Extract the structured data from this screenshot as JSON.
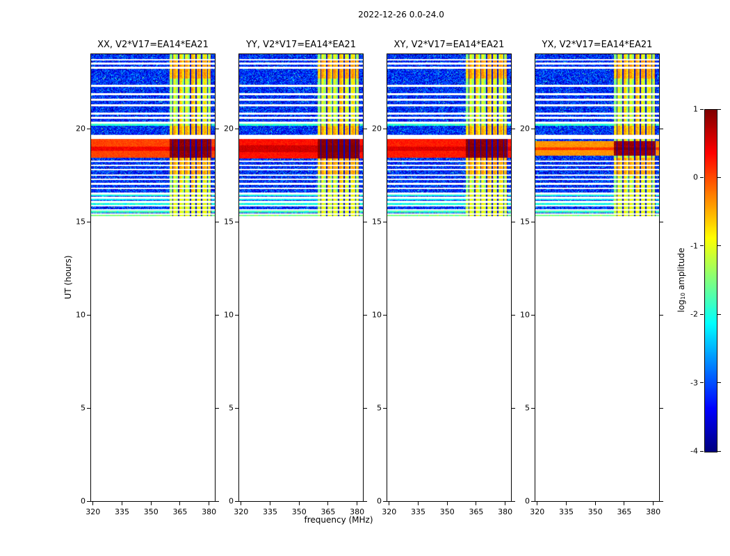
{
  "figure_title": "2022-12-26 0.0-24.0",
  "axes": {
    "x_label": "frequency (MHz)",
    "y_label": "UT (hours)",
    "x_ticks": [
      320,
      335,
      350,
      365,
      380
    ],
    "y_ticks": [
      0,
      5,
      10,
      15,
      20
    ],
    "x_range": [
      319,
      383
    ],
    "y_range": [
      0,
      24
    ]
  },
  "colorbar": {
    "label_prefix": "log",
    "label_sub": "10",
    "label_suffix": " amplitude",
    "ticks": [
      1,
      0,
      -1,
      -2,
      -3,
      -4
    ],
    "range": [
      -4,
      1
    ],
    "colormap": "jet"
  },
  "chart_data": {
    "type": "heatmap",
    "title": "2022-12-26 0.0-24.0",
    "xlabel": "frequency (MHz)",
    "ylabel": "UT (hours)",
    "x_range_mhz": [
      319,
      383
    ],
    "y_range_hours": [
      0,
      24
    ],
    "amplitude_scale": "log10",
    "amplitude_range": [
      -4,
      1
    ],
    "colormap": "jet",
    "time_coverage_hours": [
      15.3,
      24.0
    ],
    "background_amp_range": [
      -3.9,
      -2.55
    ],
    "panels": [
      {
        "pol": "XX",
        "title": "XX, V2*V17=EA14*EA21",
        "band_time": [
          18.45,
          19.45
        ],
        "core_time": [
          18.82,
          19.02
        ],
        "band_amp": 0.05,
        "rfi_band_amp": 0.9,
        "core_boost": 0.35
      },
      {
        "pol": "YY",
        "title": "YY, V2*V17=EA14*EA21",
        "band_time": [
          18.4,
          19.45
        ],
        "core_time": [
          18.72,
          19.12
        ],
        "band_amp": 0.3,
        "rfi_band_amp": 0.95,
        "core_boost": 0.3
      },
      {
        "pol": "XY",
        "title": "XY, V2*V17=EA14*EA21",
        "band_time": [
          18.42,
          19.45
        ],
        "core_time": [
          18.8,
          19.05
        ],
        "band_amp": 0.25,
        "rfi_band_amp": 0.92,
        "core_boost": 0.3
      },
      {
        "pol": "YX",
        "title": "YX, V2*V17=EA14*EA21",
        "band_time": [
          18.55,
          19.35
        ],
        "core_time": [
          18.85,
          19.0
        ],
        "band_amp": -0.35,
        "rfi_band_amp": 0.85,
        "core_boost": 0.45
      }
    ],
    "features": {
      "rfi_band": {
        "freq_range": [
          359.5,
          381.2
        ],
        "base_amp": -1.25
      },
      "rfi_bright_columns": [
        {
          "freq_range": [
            363.5,
            366.5
          ],
          "amp_boost": 0.35
        },
        {
          "freq_range": [
            370.5,
            374.0
          ],
          "amp_boost": 0.5
        },
        {
          "freq_range": [
            377.0,
            379.0
          ],
          "amp_boost": 0.25
        }
      ],
      "rfi_dark_columns": [
        361.3,
        364.4,
        367.4,
        370.3,
        373.3,
        376.2,
        379.2,
        381.0
      ],
      "rfi_hot_rows": [
        {
          "time_range": [
            15.3,
            16.6
          ],
          "amp": -1.05
        },
        {
          "time_range": [
            17.45,
            18.42
          ],
          "amp": -0.55
        },
        {
          "time_range": [
            19.45,
            20.15
          ],
          "amp": -0.6
        },
        {
          "time_range": [
            22.7,
            23.75
          ],
          "amp": -0.5
        }
      ],
      "white_lines": [
        23.7,
        23.5,
        23.28,
        22.3,
        21.85,
        21.55,
        21.25,
        20.8,
        20.58,
        20.33,
        19.62,
        19.5,
        18.25,
        18.03,
        17.8,
        17.5,
        17.28,
        17.05,
        16.8,
        16.52,
        16.3,
        16.08,
        15.86,
        15.64,
        15.42
      ],
      "cyan_lines": [
        {
          "time": 20.22,
          "amp": -1.9
        },
        {
          "time": 16.44,
          "amp": -2.0
        },
        {
          "time": 16.2,
          "amp": -2.2
        },
        {
          "time": 15.95,
          "amp": -2.0
        },
        {
          "time": 15.55,
          "amp": -1.8
        },
        {
          "time": 15.33,
          "amp": -1.5
        }
      ]
    }
  }
}
